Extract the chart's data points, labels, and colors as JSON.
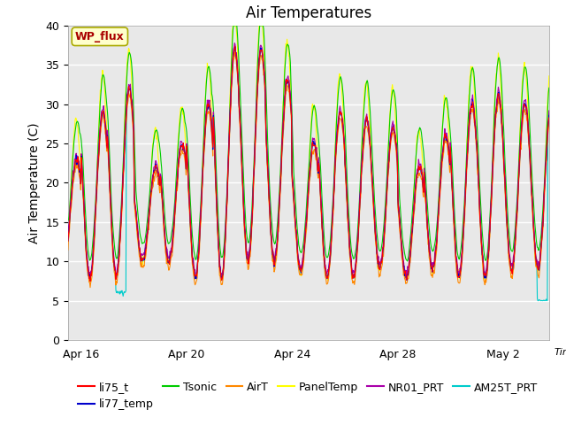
{
  "title": "Air Temperatures",
  "xlabel": "Time",
  "ylabel": "Air Temperature (C)",
  "ylim": [
    0,
    40
  ],
  "yticks": [
    0,
    5,
    10,
    15,
    20,
    25,
    30,
    35,
    40
  ],
  "xtick_labels": [
    "Apr 16",
    "Apr 20",
    "Apr 24",
    "Apr 28",
    "May 2"
  ],
  "background_color": "#e8e8e8",
  "figure_bg": "#ffffff",
  "legend_entries": [
    {
      "label": "li75_t",
      "color": "#ff0000"
    },
    {
      "label": "li77_temp",
      "color": "#0000cc"
    },
    {
      "label": "Tsonic",
      "color": "#00cc00"
    },
    {
      "label": "AirT",
      "color": "#ff8800"
    },
    {
      "label": "PanelTemp",
      "color": "#ffff00"
    },
    {
      "label": "NR01_PRT",
      "color": "#aa00aa"
    },
    {
      "label": "AM25T_PRT",
      "color": "#00cccc"
    }
  ],
  "annotation_text": "WP_flux",
  "annotation_color": "#aa0000",
  "annotation_bg": "#ffffcc",
  "annotation_border": "#aaaa00",
  "title_fontsize": 12,
  "axis_label_fontsize": 10,
  "tick_fontsize": 9,
  "legend_fontsize": 9
}
